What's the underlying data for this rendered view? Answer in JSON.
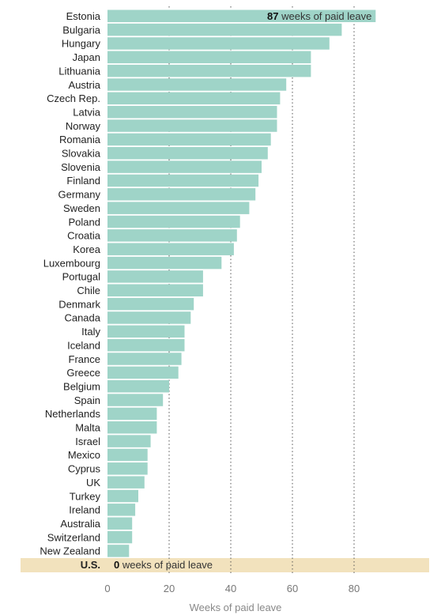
{
  "chart_data": {
    "type": "bar",
    "orientation": "horizontal",
    "title": "",
    "xlabel": "Weeks of paid leave",
    "ylabel": "",
    "xlim": [
      0,
      100
    ],
    "xticks": [
      0,
      20,
      40,
      60,
      80
    ],
    "grid": "vertical dotted",
    "bar_color": "#9fd4c8",
    "highlight_color": "#f2e2bd",
    "categories": [
      "Estonia",
      "Bulgaria",
      "Hungary",
      "Japan",
      "Lithuania",
      "Austria",
      "Czech Rep.",
      "Latvia",
      "Norway",
      "Romania",
      "Slovakia",
      "Slovenia",
      "Finland",
      "Germany",
      "Sweden",
      "Poland",
      "Croatia",
      "Korea",
      "Luxembourg",
      "Portugal",
      "Chile",
      "Denmark",
      "Canada",
      "Italy",
      "Iceland",
      "France",
      "Greece",
      "Belgium",
      "Spain",
      "Netherlands",
      "Malta",
      "Israel",
      "Mexico",
      "Cyprus",
      "UK",
      "Turkey",
      "Ireland",
      "Australia",
      "Switzerland",
      "New Zealand",
      "U.S."
    ],
    "values": [
      87,
      76,
      72,
      66,
      66,
      58,
      56,
      55,
      55,
      53,
      52,
      50,
      49,
      48,
      46,
      43,
      42,
      41,
      37,
      31,
      31,
      28,
      27,
      25,
      25,
      24,
      23,
      20,
      18,
      16,
      16,
      14,
      13,
      13,
      12,
      10,
      9,
      8,
      8,
      7,
      0
    ],
    "highlight_category": "U.S.",
    "annotations": [
      {
        "category": "Estonia",
        "value_text": "87",
        "text": " weeks of paid leave"
      },
      {
        "category": "U.S.",
        "value_text": "0",
        "text": " weeks of paid leave"
      }
    ]
  }
}
